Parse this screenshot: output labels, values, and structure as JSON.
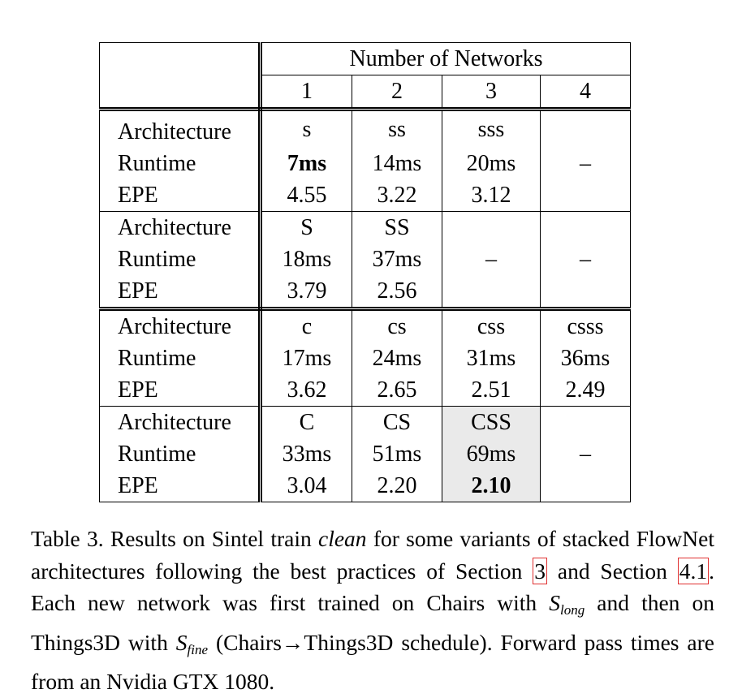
{
  "table": {
    "header": {
      "group_label": "Number of Networks",
      "columns": [
        "1",
        "2",
        "3",
        "4"
      ]
    },
    "groups": [
      {
        "rows": [
          {
            "label": "Architecture",
            "cells": [
              "s",
              "ss",
              "sss",
              ""
            ]
          },
          {
            "label": "Runtime",
            "cells": [
              "7ms",
              "14ms",
              "20ms",
              "–"
            ]
          },
          {
            "label": "EPE",
            "cells": [
              "4.55",
              "3.22",
              "3.12",
              ""
            ]
          }
        ]
      },
      {
        "rows": [
          {
            "label": "Architecture",
            "cells": [
              "S",
              "SS",
              "",
              ""
            ]
          },
          {
            "label": "Runtime",
            "cells": [
              "18ms",
              "37ms",
              "–",
              "–"
            ]
          },
          {
            "label": "EPE",
            "cells": [
              "3.79",
              "2.56",
              "",
              ""
            ]
          }
        ]
      },
      {
        "rows": [
          {
            "label": "Architecture",
            "cells": [
              "c",
              "cs",
              "css",
              "csss"
            ]
          },
          {
            "label": "Runtime",
            "cells": [
              "17ms",
              "24ms",
              "31ms",
              "36ms"
            ]
          },
          {
            "label": "EPE",
            "cells": [
              "3.62",
              "2.65",
              "2.51",
              "2.49"
            ]
          }
        ]
      },
      {
        "rows": [
          {
            "label": "Architecture",
            "cells": [
              "C",
              "CS",
              "CSS",
              ""
            ]
          },
          {
            "label": "Runtime",
            "cells": [
              "33ms",
              "51ms",
              "69ms",
              "–"
            ]
          },
          {
            "label": "EPE",
            "cells": [
              "3.04",
              "2.20",
              "2.10",
              ""
            ]
          }
        ]
      }
    ],
    "highlight_color": "#eaeaea"
  },
  "caption": {
    "t1": "Table 3. Results on Sintel train ",
    "clean": "clean",
    "t2": " for some variants of stacked FlowNet architectures following the best practices of Section ",
    "ref1": "3",
    "t3": " and Section ",
    "ref2": "4.1",
    "t4": ". Each new network was first trained on Chairs with ",
    "s_long_base": "S",
    "s_long_sub": "long",
    "t5": " and then on Things3D with ",
    "s_fine_base": "S",
    "s_fine_sub": "fine",
    "t6": " (Chairs→Things3D schedule). Forward pass times are from an Nvidia GTX 1080.",
    "ref_border_color": "#e03030"
  }
}
